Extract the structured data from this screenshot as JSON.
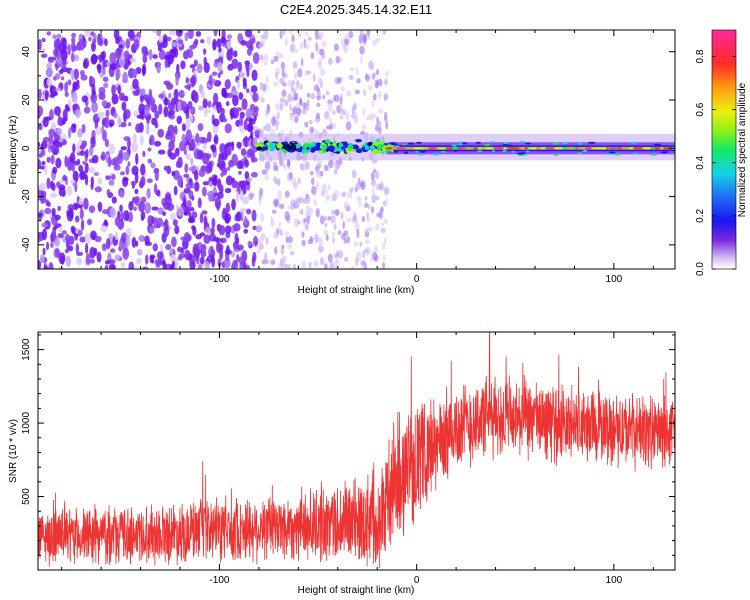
{
  "title": "C2E4.2025.345.14.32.E11",
  "colorbar": {
    "label": "Normalized spectral amplitude",
    "range": [
      0.0,
      0.9
    ],
    "ticks": [
      "0.0",
      "0.2",
      "0.4",
      "0.6",
      "0.8"
    ],
    "tick_values": [
      0.0,
      0.2,
      0.4,
      0.6,
      0.8
    ]
  },
  "chart_data": [
    {
      "type": "heatmap",
      "name": "spectrogram",
      "xlabel": "Height of straight line (km)",
      "ylabel": "Frequency (Hz)",
      "xlim": [
        -192,
        131
      ],
      "ylim": [
        -50,
        49
      ],
      "x_ticks": [
        "-100",
        "0",
        "100"
      ],
      "x_tick_values": [
        -100,
        0,
        100
      ],
      "y_ticks": [
        "-40",
        "-20",
        "0",
        "20",
        "40"
      ],
      "y_tick_values": [
        -40,
        -20,
        0,
        20,
        40
      ],
      "features": {
        "dense_noise_region_km": [
          -192,
          -80
        ],
        "sparse_noise_region_km": [
          -80,
          -15
        ],
        "signal_band_hz": [
          -3,
          4
        ],
        "signal_line_hz": 0,
        "signal_start_km": -80,
        "signal_peak_region_km": [
          -20,
          131
        ],
        "signal_peak_amplitude": 0.88
      }
    },
    {
      "type": "line",
      "name": "snr",
      "xlabel": "Height of straight line (km)",
      "ylabel": "SNR (10 * v/v)",
      "xlim": [
        -192,
        131
      ],
      "ylim": [
        0,
        1620
      ],
      "x_ticks": [
        "-100",
        "0",
        "100"
      ],
      "x_tick_values": [
        -100,
        0,
        100
      ],
      "y_ticks": [
        "500",
        "1000",
        "1500"
      ],
      "y_tick_values": [
        500,
        1000,
        1500
      ],
      "color": "#ee3333",
      "trend_points": [
        {
          "x": -192,
          "y": 220
        },
        {
          "x": -150,
          "y": 240
        },
        {
          "x": -100,
          "y": 270
        },
        {
          "x": -60,
          "y": 300
        },
        {
          "x": -30,
          "y": 330
        },
        {
          "x": -18,
          "y": 380
        },
        {
          "x": -10,
          "y": 620
        },
        {
          "x": 0,
          "y": 750
        },
        {
          "x": 10,
          "y": 850
        },
        {
          "x": 20,
          "y": 960
        },
        {
          "x": 35,
          "y": 1040
        },
        {
          "x": 50,
          "y": 1030
        },
        {
          "x": 70,
          "y": 1000
        },
        {
          "x": 100,
          "y": 960
        },
        {
          "x": 131,
          "y": 930
        }
      ],
      "noise_scale": [
        {
          "x": -192,
          "s": 170
        },
        {
          "x": -60,
          "s": 220
        },
        {
          "x": -25,
          "s": 300
        },
        {
          "x": -10,
          "s": 420
        },
        {
          "x": 10,
          "s": 300
        },
        {
          "x": 40,
          "s": 260
        },
        {
          "x": 131,
          "s": 230
        }
      ],
      "peak_value": 1620,
      "peak_x": 37
    }
  ]
}
